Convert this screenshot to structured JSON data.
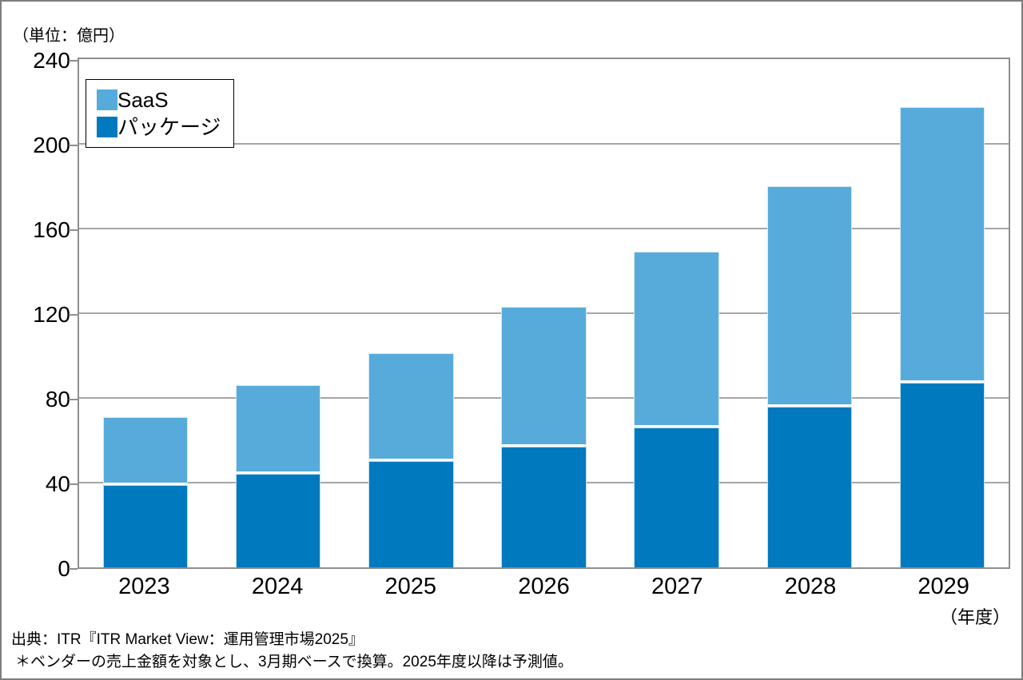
{
  "unit_label": "（単位：億円）",
  "xaxis_unit_label": "（年度）",
  "legend": {
    "items": [
      {
        "label": "SaaS",
        "color": "#57ABDB"
      },
      {
        "label": "パッケージ",
        "color": "#0079BE"
      }
    ]
  },
  "footer": {
    "source": "出典：ITR『ITR Market View：運用管理市場2025』",
    "note": "＊ベンダーの売上金額を対象とし、3月期ベースで換算。2025年度以降は予測値。"
  },
  "chart_data": {
    "type": "bar",
    "stacked": true,
    "title": "",
    "xlabel": "（年度）",
    "ylabel": "（単位：億円）",
    "categories": [
      "2023",
      "2024",
      "2025",
      "2026",
      "2027",
      "2028",
      "2029"
    ],
    "series": [
      {
        "name": "パッケージ",
        "key": "package",
        "color": "#0079BE",
        "values": [
          39,
          44,
          50,
          57,
          66,
          76,
          87
        ]
      },
      {
        "name": "SaaS",
        "key": "saas",
        "color": "#57ABDB",
        "values": [
          32,
          42,
          51,
          66,
          83,
          104,
          130
        ]
      }
    ],
    "totals": [
      71,
      86,
      101,
      123,
      149,
      180,
      217
    ],
    "ylim": [
      0,
      240
    ],
    "yticks": [
      0,
      40,
      80,
      120,
      160,
      200,
      240
    ],
    "grid": true,
    "gridline_color": "#a6a6a6",
    "legend_position": "top-left-inside",
    "note": "2025年度以降は予測値"
  }
}
